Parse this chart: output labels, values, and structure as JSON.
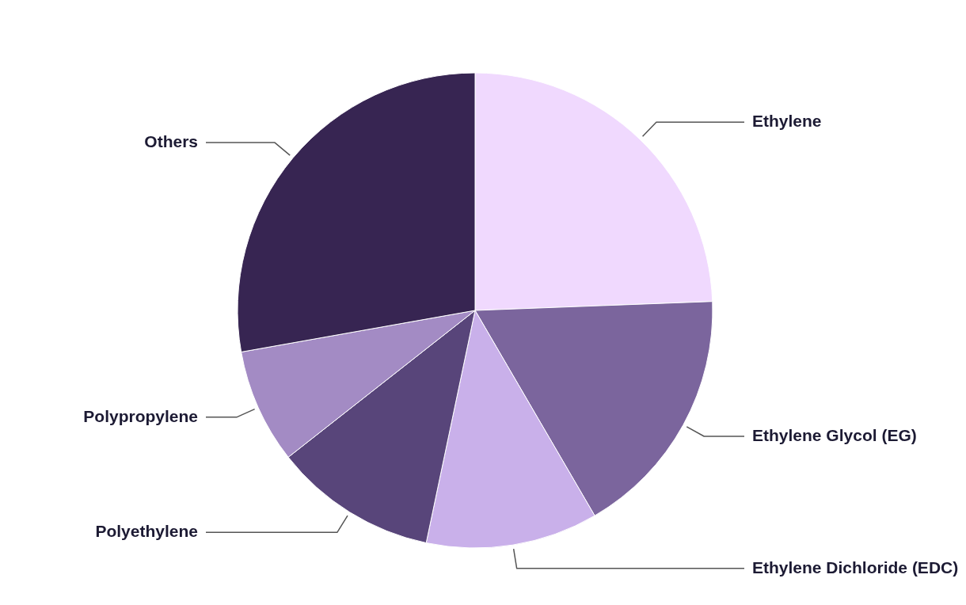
{
  "chart_data": {
    "type": "pie",
    "categories": [
      "Ethylene",
      "Ethylene Glycol (EG)",
      "Ethylene Dichloride (EDC)",
      "Polyethylene",
      "Polypropylene",
      "Others"
    ],
    "values": [
      24.4,
      17.2,
      11.7,
      11.1,
      7.8,
      27.8
    ],
    "colors": [
      "#f0d9fe",
      "#7b659d",
      "#c9b0ea",
      "#58457a",
      "#a38bc4",
      "#372552"
    ]
  }
}
